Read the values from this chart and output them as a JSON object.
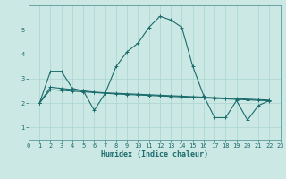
{
  "xlabel": "Humidex (Indice chaleur)",
  "bg_color": "#cce8e4",
  "grid_color": "#aad4cf",
  "line_color": "#1a6b6b",
  "spine_color": "#5a9a9a",
  "xlim": [
    0,
    23
  ],
  "ylim": [
    0.5,
    6.0
  ],
  "xticks": [
    0,
    1,
    2,
    3,
    4,
    5,
    6,
    7,
    8,
    9,
    10,
    11,
    12,
    13,
    14,
    15,
    16,
    17,
    18,
    19,
    20,
    21,
    22,
    23
  ],
  "yticks": [
    1,
    2,
    3,
    4,
    5
  ],
  "line1_x": [
    1,
    2,
    3,
    4,
    5,
    6,
    7,
    8,
    9,
    10,
    11,
    12,
    13,
    14,
    15,
    16,
    17,
    18,
    19,
    20,
    21,
    22
  ],
  "line1_y": [
    2.0,
    3.3,
    3.3,
    2.6,
    2.5,
    1.7,
    2.4,
    3.5,
    4.1,
    4.45,
    5.1,
    5.55,
    5.4,
    5.1,
    3.5,
    2.3,
    1.4,
    1.4,
    2.1,
    1.3,
    1.9,
    2.1
  ],
  "line2_x": [
    1,
    2,
    3,
    4,
    5,
    6,
    7,
    8,
    9,
    10,
    11,
    12,
    13,
    14,
    15,
    16,
    17,
    18,
    19,
    20,
    21,
    22
  ],
  "line2_y": [
    2.0,
    2.65,
    2.6,
    2.55,
    2.5,
    2.45,
    2.42,
    2.4,
    2.38,
    2.36,
    2.34,
    2.32,
    2.3,
    2.28,
    2.26,
    2.24,
    2.22,
    2.2,
    2.18,
    2.16,
    2.14,
    2.12
  ],
  "line3_x": [
    1,
    2,
    3,
    4,
    5,
    6,
    7,
    8,
    9,
    10,
    11,
    12,
    13,
    14,
    15,
    16,
    17,
    18,
    19,
    20,
    21,
    22
  ],
  "line3_y": [
    2.0,
    2.55,
    2.52,
    2.49,
    2.46,
    2.43,
    2.4,
    2.37,
    2.35,
    2.33,
    2.31,
    2.29,
    2.27,
    2.25,
    2.23,
    2.21,
    2.19,
    2.17,
    2.15,
    2.13,
    2.11,
    2.09
  ],
  "marker": "+",
  "linewidth": 0.8,
  "markersize": 3,
  "xlabel_fontsize": 6.0,
  "tick_fontsize": 5.0
}
